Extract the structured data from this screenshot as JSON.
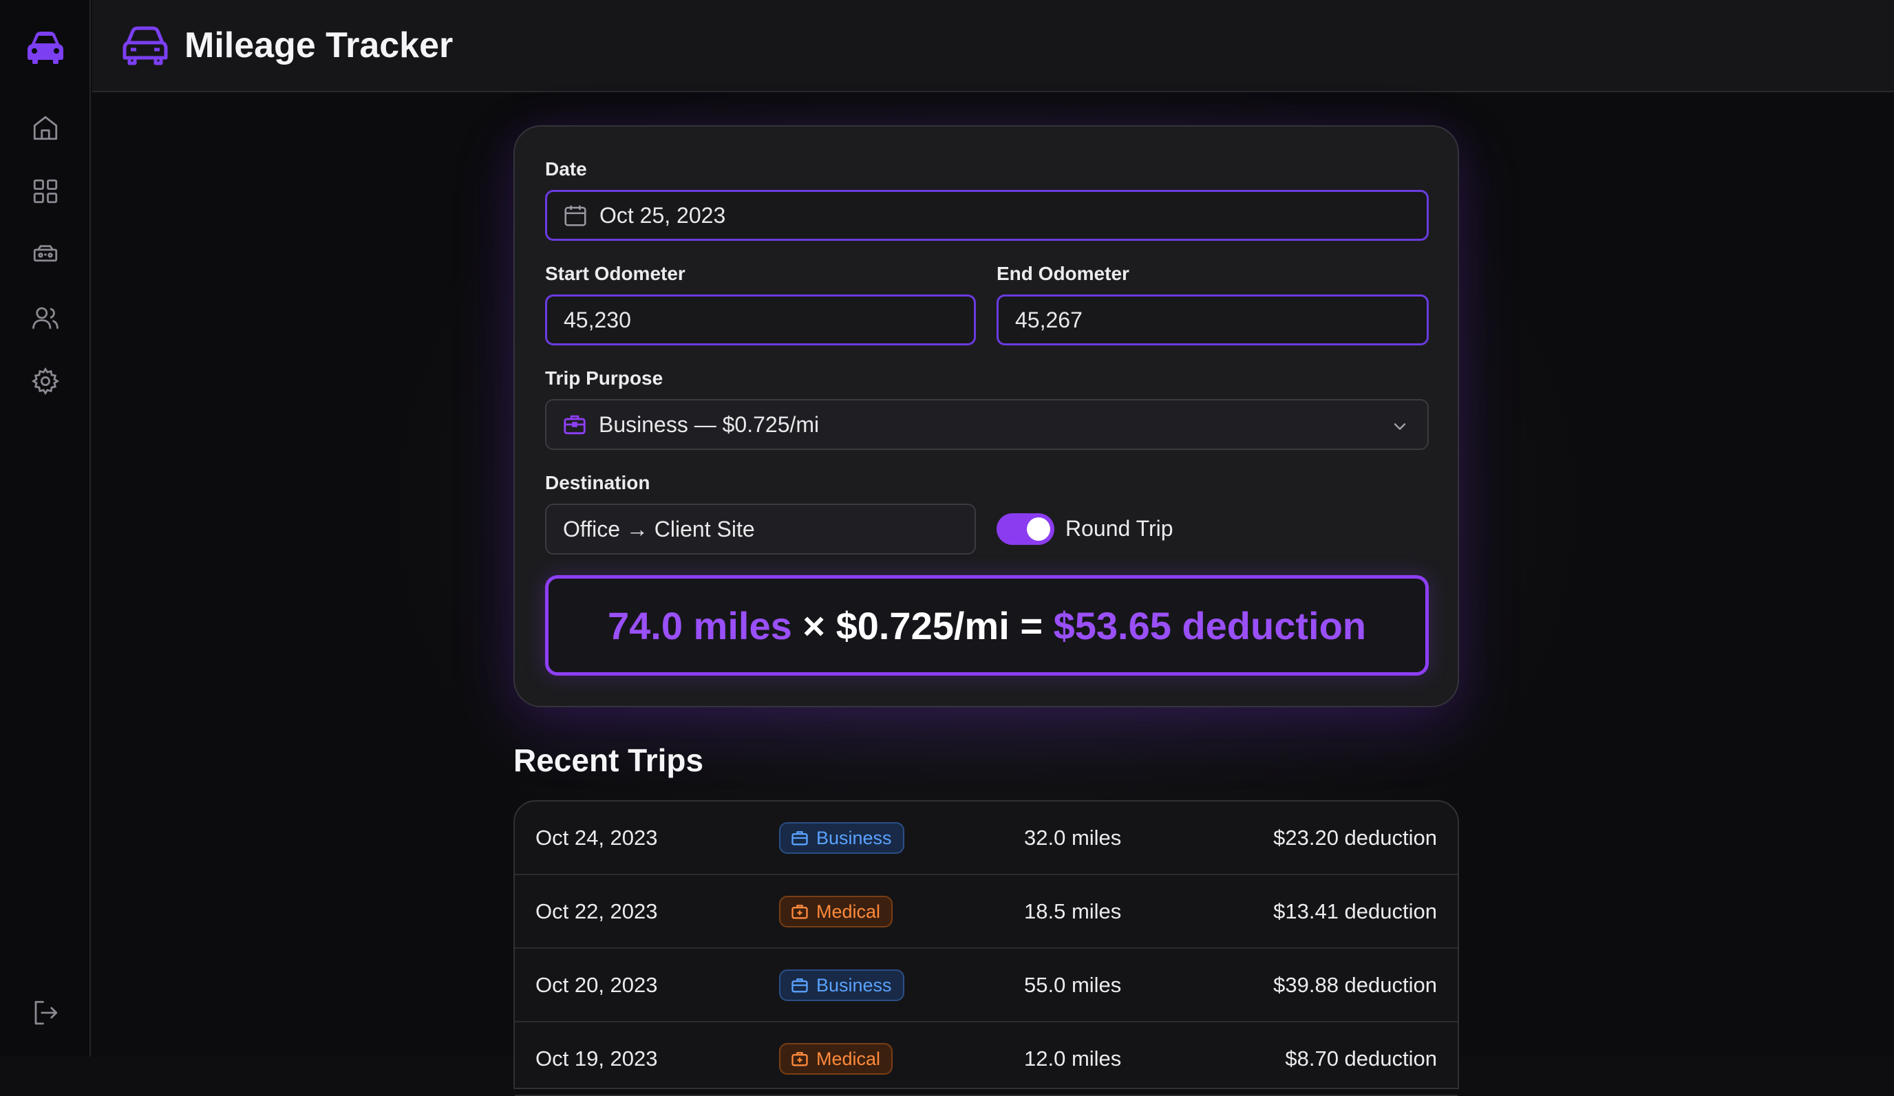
{
  "app": {
    "title": "Mileage Tracker"
  },
  "sidebar": {
    "items": [
      {
        "name": "home",
        "icon": "home-icon"
      },
      {
        "name": "dashboard",
        "icon": "grid-icon"
      },
      {
        "name": "vehicles",
        "icon": "vehicle-icon"
      },
      {
        "name": "users",
        "icon": "users-icon"
      },
      {
        "name": "settings",
        "icon": "gear-icon"
      }
    ],
    "logout_icon": "logout-icon"
  },
  "form": {
    "date_label": "Date",
    "date_value": "Oct 25, 2023",
    "start_label": "Start Odometer",
    "start_value": "45,230",
    "end_label": "End Odometer",
    "end_value": "45,267",
    "purpose_label": "Trip Purpose",
    "purpose_value": "Business — $0.725/mi",
    "destination_label": "Destination",
    "destination_value": "Office → Client Site",
    "round_trip_label": "Round Trip",
    "round_trip_on": true
  },
  "result": {
    "miles": "74.0 miles",
    "times": " × ",
    "rate": "$0.725/mi",
    "equals": " = ",
    "deduction": "$53.65 deduction"
  },
  "recent": {
    "title": "Recent Trips",
    "rows": [
      {
        "date": "Oct 24, 2023",
        "purpose": "Business",
        "miles": "32.0 miles",
        "deduction": "$23.20 deduction"
      },
      {
        "date": "Oct 22, 2023",
        "purpose": "Medical",
        "miles": "18.5 miles",
        "deduction": "$13.41 deduction"
      },
      {
        "date": "Oct 20, 2023",
        "purpose": "Business",
        "miles": "55.0 miles",
        "deduction": "$39.88 deduction"
      },
      {
        "date": "Oct 19, 2023",
        "purpose": "Medical",
        "miles": "12.0 miles",
        "deduction": "$8.70 deduction"
      }
    ]
  },
  "colors": {
    "accent": "#8e3ff5",
    "business": "#5aa2ff",
    "medical": "#ff8a3c"
  }
}
